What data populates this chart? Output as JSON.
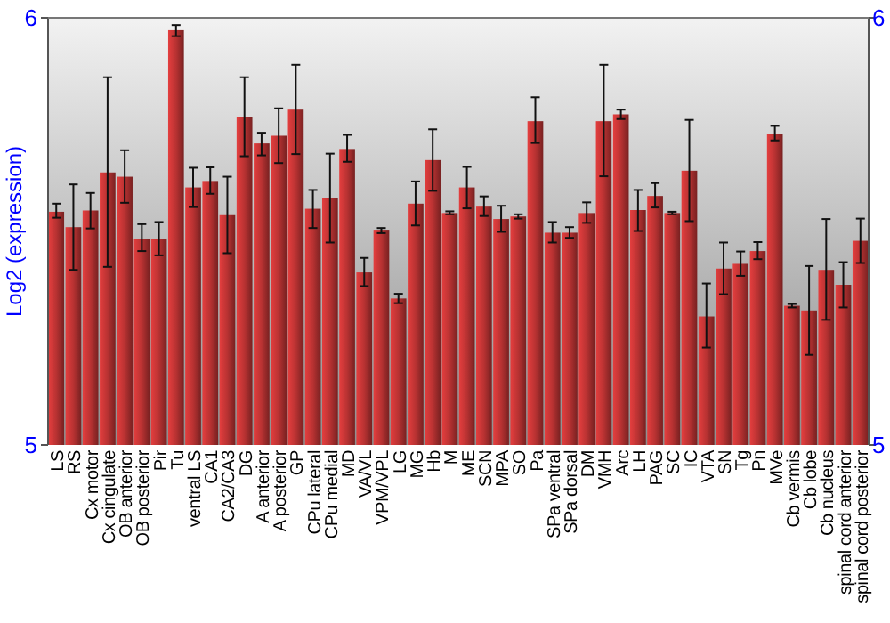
{
  "chart_data": {
    "type": "bar",
    "ylabel": "Log2 (expression)",
    "categories": [
      "LS",
      "RS",
      "Cx motor",
      "Cx cingulate",
      "OB anterior",
      "OB posterior",
      "Pir",
      "Tu",
      "ventral LS",
      "CA1",
      "CA2/CA3",
      "DG",
      "A anterior",
      "A posterior",
      "GP",
      "CPu lateral",
      "CPu medial",
      "MD",
      "VA/VL",
      "VPM/VPL",
      "LG",
      "MG",
      "Hb",
      "M",
      "ME",
      "SCN",
      "MPA",
      "SO",
      "Pa",
      "SPa ventral",
      "SPa dorsal",
      "DM",
      "VMH",
      "Arc",
      "LH",
      "PAG",
      "SC",
      "IC",
      "VTA",
      "SN",
      "Tg",
      "Pn",
      "MVe",
      "Cb vermis",
      "Cb lobe",
      "Cb nucleus",
      "spinal cord anterior",
      "spinal cord posterior"
    ],
    "values": [
      5.546,
      5.51,
      5.549,
      5.638,
      5.628,
      5.483,
      5.483,
      5.971,
      5.603,
      5.618,
      5.538,
      5.768,
      5.706,
      5.724,
      5.785,
      5.553,
      5.578,
      5.693,
      5.404,
      5.504,
      5.343,
      5.565,
      5.667,
      5.543,
      5.603,
      5.558,
      5.529,
      5.535,
      5.758,
      5.497,
      5.497,
      5.543,
      5.758,
      5.774,
      5.55,
      5.583,
      5.543,
      5.642,
      5.301,
      5.413,
      5.424,
      5.454,
      5.729,
      5.326,
      5.315,
      5.41,
      5.375,
      5.478
    ],
    "errors": [
      [
        5.532,
        5.565
      ],
      [
        5.41,
        5.61
      ],
      [
        5.507,
        5.59
      ],
      [
        5.417,
        5.861
      ],
      [
        5.567,
        5.69
      ],
      [
        5.454,
        5.517
      ],
      [
        5.444,
        5.522
      ],
      [
        5.957,
        5.983
      ],
      [
        5.557,
        5.649
      ],
      [
        5.588,
        5.65
      ],
      [
        5.449,
        5.628
      ],
      [
        5.676,
        5.861
      ],
      [
        5.678,
        5.731
      ],
      [
        5.66,
        5.788
      ],
      [
        5.681,
        5.89
      ],
      [
        5.508,
        5.597
      ],
      [
        5.474,
        5.682
      ],
      [
        5.663,
        5.726
      ],
      [
        5.372,
        5.438
      ],
      [
        5.496,
        5.508
      ],
      [
        5.332,
        5.354
      ],
      [
        5.514,
        5.617
      ],
      [
        5.595,
        5.739
      ],
      [
        5.54,
        5.547
      ],
      [
        5.554,
        5.651
      ],
      [
        5.536,
        5.582
      ],
      [
        5.499,
        5.56
      ],
      [
        5.53,
        5.54
      ],
      [
        5.707,
        5.814
      ],
      [
        5.474,
        5.522
      ],
      [
        5.485,
        5.51
      ],
      [
        5.52,
        5.568
      ],
      [
        5.629,
        5.89
      ],
      [
        5.763,
        5.785
      ],
      [
        5.501,
        5.597
      ],
      [
        5.556,
        5.613
      ],
      [
        5.54,
        5.546
      ],
      [
        5.524,
        5.761
      ],
      [
        5.228,
        5.378
      ],
      [
        5.353,
        5.474
      ],
      [
        5.396,
        5.453
      ],
      [
        5.435,
        5.475
      ],
      [
        5.713,
        5.747
      ],
      [
        5.322,
        5.33
      ],
      [
        5.211,
        5.419
      ],
      [
        5.293,
        5.529
      ],
      [
        5.322,
        5.428
      ],
      [
        5.426,
        5.53
      ]
    ],
    "color": "#b83232",
    "ylim": [
      5,
      6
    ],
    "yticks": [
      5,
      6
    ],
    "y2lim": [
      5,
      6
    ],
    "y2ticks": [
      5,
      6
    ],
    "grid": false
  }
}
